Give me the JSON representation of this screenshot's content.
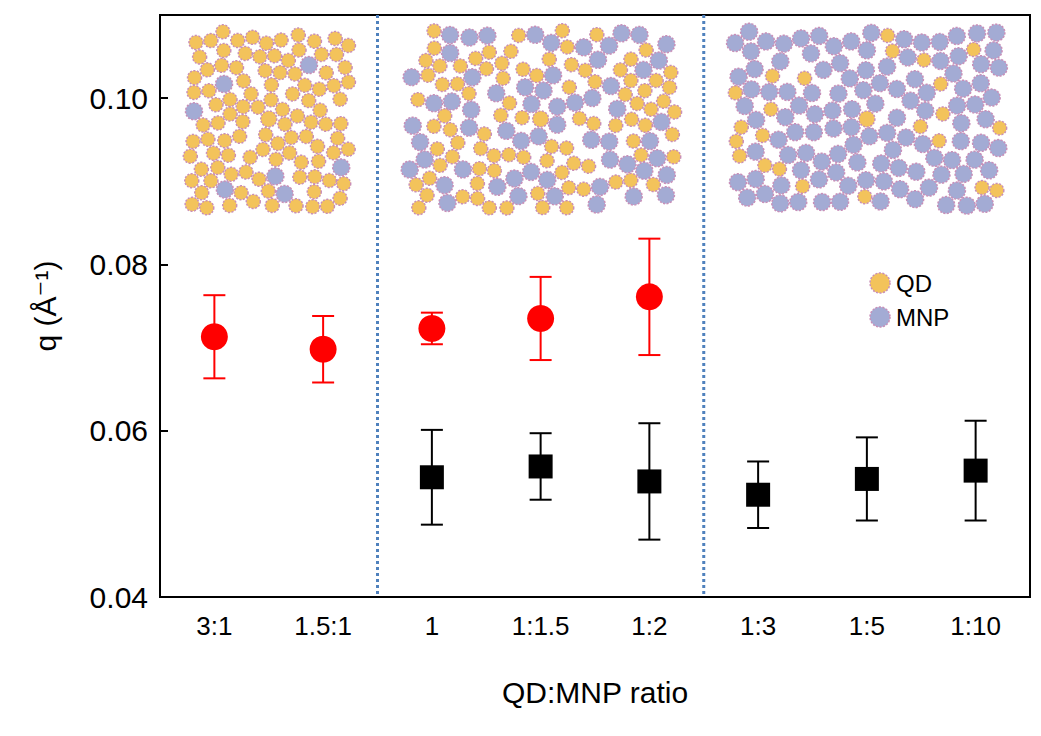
{
  "chart_data": {
    "type": "scatter",
    "y_label": "q (Å⁻¹)",
    "x_label": "QD:MNP ratio",
    "categories": [
      "3:1",
      "1.5:1",
      "1",
      "1:1.5",
      "1:2",
      "1:3",
      "1:5",
      "1:10"
    ],
    "series": [
      {
        "color": "#ff0000",
        "marker": "circle",
        "values": [
          0.0713,
          0.0698,
          0.0723,
          0.0735,
          0.0761,
          null,
          null,
          null
        ],
        "errors": [
          0.005,
          0.004,
          0.0019,
          0.005,
          0.007,
          null,
          null,
          null
        ]
      },
      {
        "color": "#000000",
        "marker": "square",
        "values": [
          null,
          null,
          0.0544,
          0.0557,
          0.0539,
          0.0523,
          0.0542,
          0.0552
        ],
        "errors": [
          null,
          null,
          0.0057,
          0.004,
          0.007,
          0.004,
          0.005,
          0.006
        ]
      }
    ],
    "ylim": [
      0.04,
      0.11
    ],
    "yticks": [
      0.04,
      0.06,
      0.08,
      {
        "value": 0.1,
        "label": "0.10"
      }
    ],
    "grid": false,
    "group_breaks": [
      "1.5:1",
      "1:2"
    ],
    "annotations": [
      {
        "text": "QD",
        "color": "#f3c35b",
        "marker": "circle"
      },
      {
        "text": "MNP",
        "color": "#a3abd4",
        "marker": "circle"
      }
    ]
  }
}
